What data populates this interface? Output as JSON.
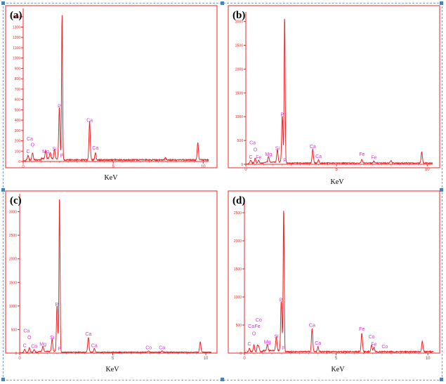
{
  "chart_data": [
    {
      "type": "line",
      "panel_label": "(a)",
      "xlabel": "KeV",
      "ylabel": "",
      "xlim": [
        0,
        10.3
      ],
      "ylim": [
        0,
        1480
      ],
      "x_ticks": [
        0,
        5,
        10
      ],
      "y_ticks": [
        0,
        100,
        200,
        300,
        400,
        500,
        600,
        700,
        800,
        900,
        1000,
        1100,
        1200,
        1300,
        1400
      ],
      "series": [
        {
          "peaks": [
            {
              "x": 0.27,
              "y": 40
            },
            {
              "x": 0.52,
              "y": 70
            },
            {
              "x": 1.25,
              "y": 80
            },
            {
              "x": 1.5,
              "y": 60
            },
            {
              "x": 1.74,
              "y": 95
            },
            {
              "x": 2.01,
              "y": 510
            },
            {
              "x": 2.16,
              "y": 1410
            },
            {
              "x": 3.69,
              "y": 380
            },
            {
              "x": 4.01,
              "y": 70
            },
            {
              "x": 7.9,
              "y": 20
            },
            {
              "x": 9.7,
              "y": 170
            }
          ],
          "baseline": 15
        }
      ],
      "annotations": [
        {
          "text": "Ca",
          "x": 0.37,
          "y": 205
        },
        {
          "text": "O",
          "x": 0.52,
          "y": 145
        },
        {
          "text": "C",
          "x": 0.27,
          "y": 80
        },
        {
          "text": "Mg",
          "x": 1.25,
          "y": 80
        },
        {
          "text": "Si",
          "x": 1.74,
          "y": 105
        },
        {
          "text": "P",
          "x": 2.01,
          "y": 520
        },
        {
          "text": "P",
          "x": 2.15,
          "y": 40
        },
        {
          "text": "Ca",
          "x": 3.69,
          "y": 385
        },
        {
          "text": "Ca",
          "x": 4.01,
          "y": 115
        }
      ]
    },
    {
      "type": "line",
      "panel_label": "(b)",
      "xlabel": "KeV",
      "ylabel": "",
      "xlim": [
        0,
        10.3
      ],
      "ylim": [
        0,
        3200
      ],
      "x_ticks": [
        0,
        5,
        10
      ],
      "y_ticks": [
        0,
        500,
        1000,
        1500,
        2000,
        2500,
        3000
      ],
      "series": [
        {
          "peaks": [
            {
              "x": 0.27,
              "y": 60
            },
            {
              "x": 0.52,
              "y": 100
            },
            {
              "x": 0.71,
              "y": 60
            },
            {
              "x": 1.25,
              "y": 120
            },
            {
              "x": 1.74,
              "y": 270
            },
            {
              "x": 2.01,
              "y": 1000
            },
            {
              "x": 2.14,
              "y": 3100
            },
            {
              "x": 3.69,
              "y": 300
            },
            {
              "x": 4.01,
              "y": 70
            },
            {
              "x": 6.4,
              "y": 80
            },
            {
              "x": 7.06,
              "y": 40
            },
            {
              "x": 8.0,
              "y": 50
            },
            {
              "x": 9.7,
              "y": 240
            }
          ],
          "baseline": 25
        }
      ],
      "annotations": [
        {
          "text": "Ca",
          "x": 0.37,
          "y": 420
        },
        {
          "text": "O",
          "x": 0.52,
          "y": 270
        },
        {
          "text": "C",
          "x": 0.27,
          "y": 120
        },
        {
          "text": "Fe",
          "x": 0.71,
          "y": 110
        },
        {
          "text": "Mg",
          "x": 1.25,
          "y": 180
        },
        {
          "text": "Si",
          "x": 1.74,
          "y": 300
        },
        {
          "text": "P",
          "x": 2.0,
          "y": 1010
        },
        {
          "text": "P",
          "x": 2.15,
          "y": 50
        },
        {
          "text": "Ca",
          "x": 3.69,
          "y": 340
        },
        {
          "text": "Ca",
          "x": 4.01,
          "y": 130
        },
        {
          "text": "Fe",
          "x": 6.4,
          "y": 180
        },
        {
          "text": "Fe",
          "x": 7.06,
          "y": 110
        }
      ]
    },
    {
      "type": "line",
      "panel_label": "(c)",
      "xlabel": "KeV",
      "ylabel": "",
      "xlim": [
        0,
        10.3
      ],
      "ylim": [
        0,
        3380
      ],
      "x_ticks": [
        0,
        5,
        10
      ],
      "y_ticks": [
        0,
        500,
        1000,
        1500,
        2000,
        2500,
        3000
      ],
      "series": [
        {
          "peaks": [
            {
              "x": 0.27,
              "y": 60
            },
            {
              "x": 0.52,
              "y": 90
            },
            {
              "x": 0.78,
              "y": 50
            },
            {
              "x": 1.25,
              "y": 110
            },
            {
              "x": 1.74,
              "y": 260
            },
            {
              "x": 2.01,
              "y": 1000
            },
            {
              "x": 2.14,
              "y": 3320
            },
            {
              "x": 3.69,
              "y": 320
            },
            {
              "x": 4.01,
              "y": 80
            },
            {
              "x": 6.93,
              "y": 30
            },
            {
              "x": 7.65,
              "y": 30
            },
            {
              "x": 9.7,
              "y": 220
            }
          ],
          "baseline": 20
        }
      ],
      "annotations": [
        {
          "text": "Ca",
          "x": 0.37,
          "y": 440
        },
        {
          "text": "O",
          "x": 0.52,
          "y": 300
        },
        {
          "text": "C",
          "x": 0.27,
          "y": 130
        },
        {
          "text": "Co",
          "x": 0.78,
          "y": 110
        },
        {
          "text": "Mg",
          "x": 1.25,
          "y": 160
        },
        {
          "text": "Si",
          "x": 1.74,
          "y": 300
        },
        {
          "text": "P",
          "x": 2.0,
          "y": 1000
        },
        {
          "text": "P",
          "x": 2.15,
          "y": 60
        },
        {
          "text": "Ca",
          "x": 3.69,
          "y": 370
        },
        {
          "text": "Ca",
          "x": 4.01,
          "y": 130
        },
        {
          "text": "Co",
          "x": 6.93,
          "y": 80
        },
        {
          "text": "Co",
          "x": 7.65,
          "y": 80
        }
      ]
    },
    {
      "type": "line",
      "panel_label": "(d)",
      "xlabel": "KeV",
      "ylabel": "",
      "xlim": [
        0,
        10.3
      ],
      "ylim": [
        0,
        2750
      ],
      "x_ticks": [
        0,
        5,
        10
      ],
      "y_ticks": [
        0,
        500,
        1000,
        1500,
        2000,
        2500
      ],
      "series": [
        {
          "peaks": [
            {
              "x": 0.27,
              "y": 60
            },
            {
              "x": 0.52,
              "y": 120
            },
            {
              "x": 0.71,
              "y": 100
            },
            {
              "x": 0.78,
              "y": 90
            },
            {
              "x": 1.25,
              "y": 110
            },
            {
              "x": 1.74,
              "y": 250
            },
            {
              "x": 2.01,
              "y": 900
            },
            {
              "x": 2.14,
              "y": 2580
            },
            {
              "x": 3.69,
              "y": 420
            },
            {
              "x": 4.01,
              "y": 90
            },
            {
              "x": 6.4,
              "y": 330
            },
            {
              "x": 6.93,
              "y": 120
            },
            {
              "x": 7.06,
              "y": 80
            },
            {
              "x": 9.7,
              "y": 190
            }
          ],
          "baseline": 25
        }
      ],
      "annotations": [
        {
          "text": "Co",
          "x": 0.78,
          "y": 560
        },
        {
          "text": "Ca",
          "x": 0.37,
          "y": 450
        },
        {
          "text": "Fe",
          "x": 0.71,
          "y": 450
        },
        {
          "text": "O",
          "x": 0.52,
          "y": 320
        },
        {
          "text": "C",
          "x": 0.27,
          "y": 140
        },
        {
          "text": "Mg",
          "x": 1.25,
          "y": 170
        },
        {
          "text": "Si",
          "x": 1.74,
          "y": 270
        },
        {
          "text": "P",
          "x": 2.0,
          "y": 920
        },
        {
          "text": "P",
          "x": 2.15,
          "y": 60
        },
        {
          "text": "Ca",
          "x": 3.69,
          "y": 470
        },
        {
          "text": "Ca",
          "x": 4.01,
          "y": 150
        },
        {
          "text": "Fe",
          "x": 6.4,
          "y": 400
        },
        {
          "text": "Co",
          "x": 6.93,
          "y": 260
        },
        {
          "text": "Fe",
          "x": 7.06,
          "y": 130
        },
        {
          "text": "Co",
          "x": 7.65,
          "y": 90
        }
      ]
    }
  ],
  "colors": {
    "line": "#e8262a",
    "frame": "#e8262a",
    "label": "#d633d6",
    "axis_text": "#e8262a",
    "border": "#7f9fbf"
  }
}
